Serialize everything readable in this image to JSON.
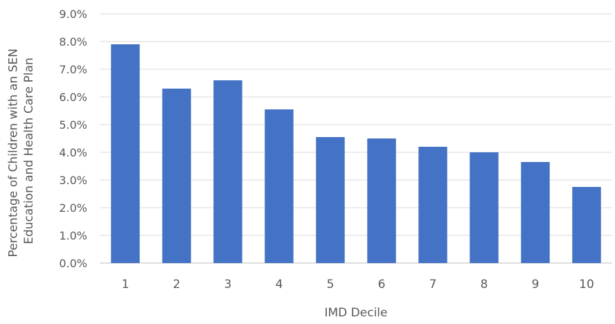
{
  "chart_data": {
    "type": "bar",
    "categories": [
      "1",
      "2",
      "3",
      "4",
      "5",
      "6",
      "7",
      "8",
      "9",
      "10"
    ],
    "values": [
      7.9,
      6.3,
      6.6,
      5.55,
      4.55,
      4.5,
      4.2,
      4.0,
      3.65,
      2.75
    ],
    "value_unit": "%",
    "xlabel": "IMD Decile",
    "ylabel_lines": [
      "Percentage of Children with an SEN",
      "Education and Health Care Plan"
    ],
    "ylim": [
      0,
      9
    ],
    "y_ticks": [
      "0.0%",
      "1.0%",
      "2.0%",
      "3.0%",
      "4.0%",
      "5.0%",
      "6.0%",
      "7.0%",
      "8.0%",
      "9.0%"
    ],
    "grid": true,
    "legend": "none",
    "bar_color": "#4472c4",
    "grid_color": "#d9d9d9",
    "text_color": "#595959"
  }
}
